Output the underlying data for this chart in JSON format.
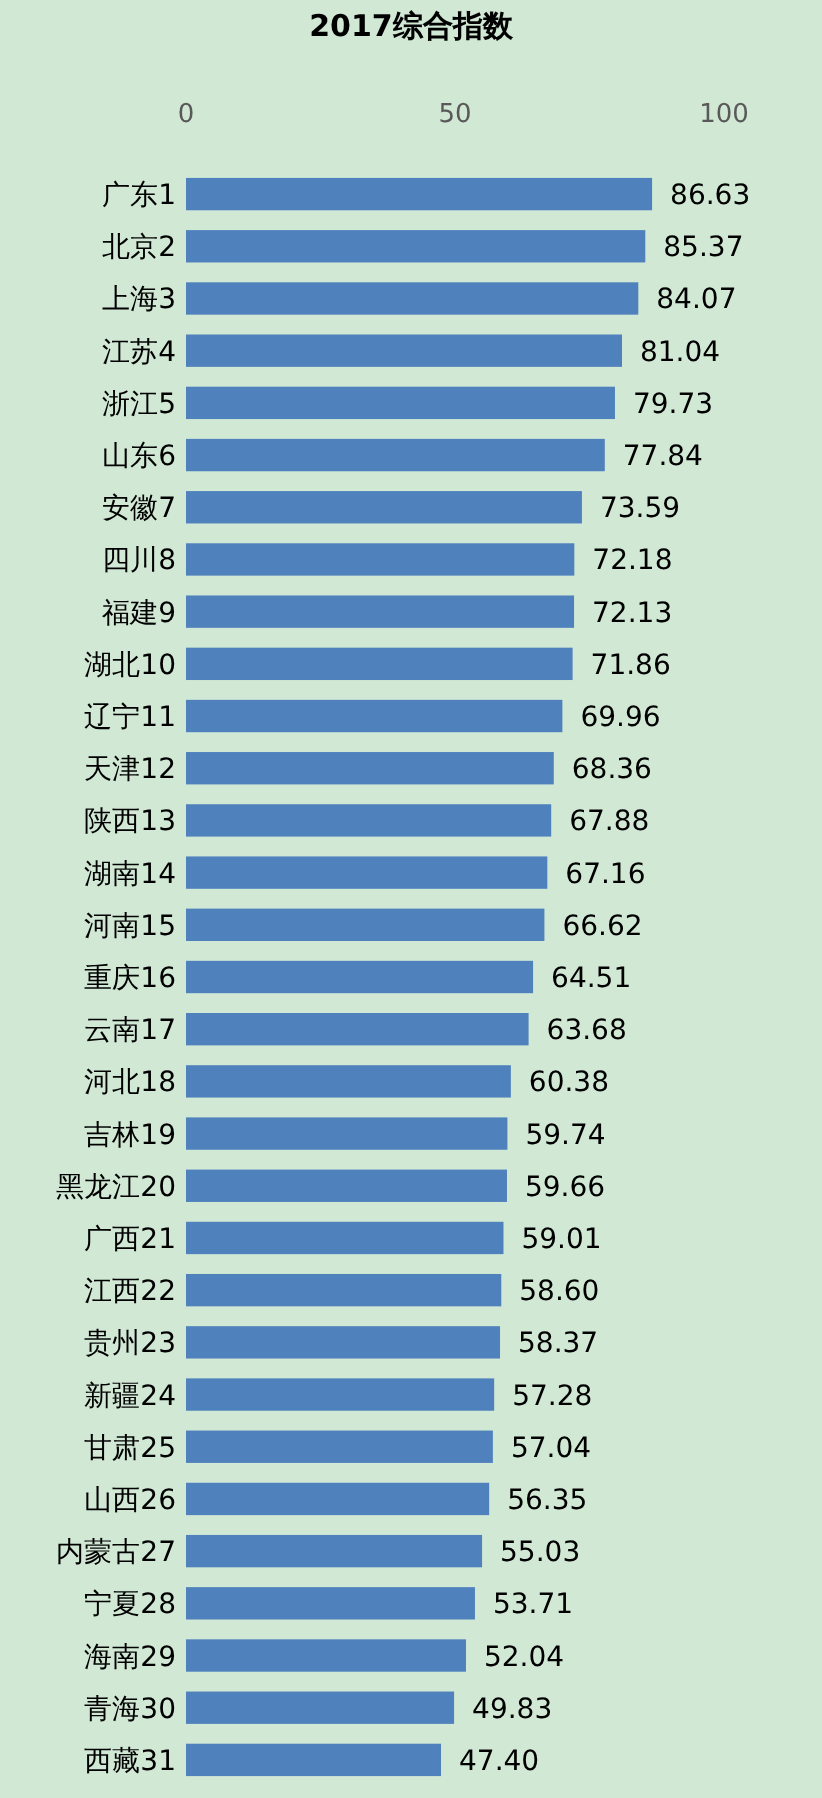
{
  "chart_data": {
    "type": "bar",
    "orientation": "horizontal",
    "title": "2017综合指数",
    "categories": [
      "广东1",
      "北京2",
      "上海3",
      "江苏4",
      "浙江5",
      "山东6",
      "安徽7",
      "四川8",
      "福建9",
      "湖北10",
      "辽宁11",
      "天津12",
      "陕西13",
      "湖南14",
      "河南15",
      "重庆16",
      "云南17",
      "河北18",
      "吉林19",
      "黑龙江20",
      "广西21",
      "江西22",
      "贵州23",
      "新疆24",
      "甘肃25",
      "山西26",
      "内蒙古27",
      "宁夏28",
      "海南29",
      "青海30",
      "西藏31"
    ],
    "values": [
      86.63,
      85.37,
      84.07,
      81.04,
      79.73,
      77.84,
      73.59,
      72.18,
      72.13,
      71.86,
      69.96,
      68.36,
      67.88,
      67.16,
      66.62,
      64.51,
      63.68,
      60.38,
      59.74,
      59.66,
      59.01,
      58.6,
      58.37,
      57.28,
      57.04,
      56.35,
      55.03,
      53.71,
      52.04,
      49.83,
      47.4
    ],
    "value_labels": [
      "86.63",
      "85.37",
      "84.07",
      "81.04",
      "79.73",
      "77.84",
      "73.59",
      "72.18",
      "72.13",
      "71.86",
      "69.96",
      "68.36",
      "67.88",
      "67.16",
      "66.62",
      "64.51",
      "63.68",
      "60.38",
      "59.74",
      "59.66",
      "59.01",
      "58.60",
      "58.37",
      "57.28",
      "57.04",
      "56.35",
      "55.03",
      "53.71",
      "52.04",
      "49.83",
      "47.40"
    ],
    "color": "#4f81bd",
    "xlim": [
      0,
      100
    ],
    "xticks": [
      0,
      50,
      100
    ]
  }
}
